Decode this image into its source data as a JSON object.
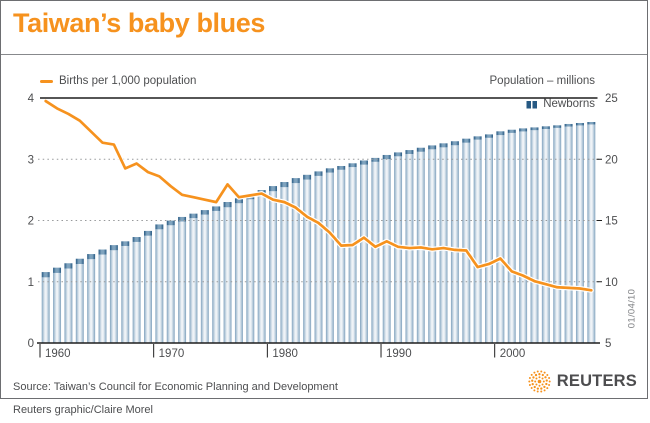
{
  "title": "Taiwan’s baby blues",
  "legend": {
    "line_label": "Births per 1,000 population",
    "right_axis_title": "Population – millions",
    "bar_label": "Newborns"
  },
  "date_stamp": "01/04/10",
  "source": "Source: Taiwan’s Council for Economic Planning and Development",
  "credit": "Reuters graphic/Claire Morel",
  "logo_text": "REUTERS",
  "colors": {
    "accent_orange": "#F6921E",
    "bar_edge": "#7FA0BC",
    "bar_mid": "#A9C1D4",
    "bar_center": "#EFF3F7",
    "cap_edge": "#265983",
    "cap_center": "#7FA3BE",
    "axis_black": "#1E1E1E",
    "grid_gray": "#97999B",
    "text_gray": "#4D4E50"
  },
  "chart_data": {
    "type": "combo",
    "title": "Taiwan’s baby blues",
    "x": [
      1960,
      1961,
      1962,
      1963,
      1964,
      1965,
      1966,
      1967,
      1968,
      1969,
      1970,
      1971,
      1972,
      1973,
      1974,
      1975,
      1976,
      1977,
      1978,
      1979,
      1980,
      1981,
      1982,
      1983,
      1984,
      1985,
      1986,
      1987,
      1988,
      1989,
      1990,
      1991,
      1992,
      1993,
      1994,
      1995,
      1996,
      1997,
      1998,
      1999,
      2000,
      2001,
      2002,
      2003,
      2004,
      2005,
      2006,
      2007,
      2008
    ],
    "x_ticks": [
      1960,
      1970,
      1980,
      1990,
      2000
    ],
    "left_axis": {
      "label": "Births per 1,000 population",
      "range": [
        0,
        4
      ],
      "ticks": [
        0,
        1,
        2,
        3,
        4
      ]
    },
    "right_axis": {
      "label": "Population – millions",
      "range": [
        5,
        25
      ],
      "ticks": [
        5,
        10,
        15,
        20,
        25
      ]
    },
    "grid_values_left": [
      1,
      2,
      3
    ],
    "series": [
      {
        "name": "Population",
        "type": "bar",
        "axis": "right",
        "unit": "millions",
        "values": [
          10.79,
          11.15,
          11.51,
          11.88,
          12.26,
          12.63,
          12.99,
          13.3,
          13.65,
          14.15,
          14.68,
          14.99,
          15.29,
          15.56,
          15.85,
          16.15,
          16.51,
          16.81,
          17.14,
          17.48,
          17.81,
          18.14,
          18.46,
          18.73,
          19.01,
          19.26,
          19.45,
          19.67,
          19.9,
          20.11,
          20.35,
          20.56,
          20.75,
          20.94,
          21.13,
          21.3,
          21.47,
          21.68,
          21.87,
          22.03,
          22.28,
          22.41,
          22.52,
          22.6,
          22.69,
          22.77,
          22.88,
          22.96,
          23.04
        ]
      },
      {
        "name": "Newborns",
        "type": "bar-top-segment",
        "axis": "right",
        "unit": "millions",
        "values": [
          0.43,
          0.43,
          0.43,
          0.43,
          0.42,
          0.41,
          0.42,
          0.38,
          0.4,
          0.39,
          0.4,
          0.38,
          0.37,
          0.37,
          0.37,
          0.37,
          0.43,
          0.4,
          0.41,
          0.43,
          0.42,
          0.42,
          0.41,
          0.39,
          0.37,
          0.35,
          0.31,
          0.31,
          0.34,
          0.32,
          0.34,
          0.32,
          0.32,
          0.33,
          0.32,
          0.33,
          0.33,
          0.33,
          0.27,
          0.28,
          0.31,
          0.26,
          0.25,
          0.23,
          0.22,
          0.21,
          0.21,
          0.2,
          0.2
        ]
      },
      {
        "name": "Births per 1,000 population",
        "type": "line",
        "axis": "left",
        "values": [
          3.95,
          3.83,
          3.74,
          3.63,
          3.45,
          3.27,
          3.24,
          2.85,
          2.93,
          2.79,
          2.72,
          2.56,
          2.42,
          2.38,
          2.34,
          2.3,
          2.59,
          2.38,
          2.41,
          2.44,
          2.34,
          2.3,
          2.21,
          2.06,
          1.96,
          1.8,
          1.59,
          1.6,
          1.72,
          1.57,
          1.66,
          1.57,
          1.55,
          1.56,
          1.53,
          1.55,
          1.52,
          1.51,
          1.24,
          1.29,
          1.38,
          1.17,
          1.1,
          1.01,
          0.96,
          0.91,
          0.9,
          0.89,
          0.86
        ]
      }
    ]
  }
}
